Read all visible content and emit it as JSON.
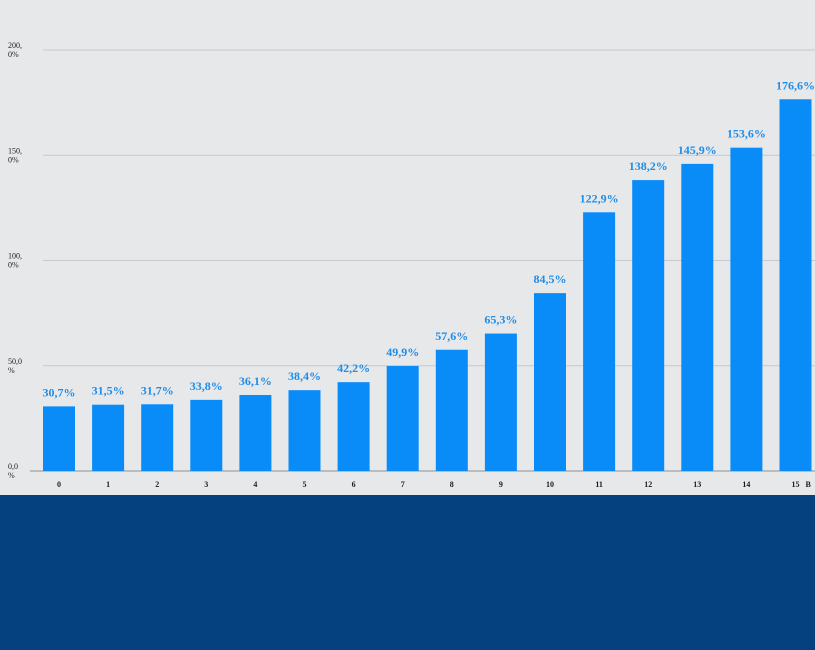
{
  "chart_data": {
    "type": "bar",
    "title": "",
    "xlabel": "",
    "ylabel": "",
    "categories": [
      "0",
      "1",
      "2",
      "3",
      "4",
      "5",
      "6",
      "7",
      "8",
      "9",
      "10",
      "11",
      "12",
      "13",
      "14",
      "15"
    ],
    "values": [
      30.7,
      31.5,
      31.7,
      33.8,
      36.1,
      38.4,
      42.2,
      49.9,
      57.6,
      65.3,
      84.5,
      122.9,
      138.2,
      145.9,
      153.6,
      176.6
    ],
    "value_labels": [
      "30,7%",
      "31,5%",
      "31,7%",
      "33,8%",
      "36,1%",
      "38,4%",
      "42,2%",
      "49,9%",
      "57,6%",
      "65,3%",
      "84,5%",
      "122,9%",
      "138,2%",
      "145,9%",
      "153,6%",
      "176,6%"
    ],
    "y_ticks": [
      {
        "value": 0,
        "label_lines": [
          "0,0",
          "%"
        ]
      },
      {
        "value": 50,
        "label_lines": [
          "50,0",
          "%"
        ]
      },
      {
        "value": 100,
        "label_lines": [
          "100,",
          "0%"
        ]
      },
      {
        "value": 150,
        "label_lines": [
          "150,",
          "0%"
        ]
      },
      {
        "value": 200,
        "label_lines": [
          "200,",
          "0%"
        ]
      }
    ],
    "ylim": [
      0,
      200
    ],
    "grid": true,
    "x_axis_trailing_text": "B",
    "colors": {
      "bar": "#0a8cf8",
      "data_label": "#1f8de8",
      "gridline": "#c6c9cd",
      "background": "#e7e8ea"
    }
  },
  "page_colors": {
    "bottom_band": "#05407f"
  }
}
